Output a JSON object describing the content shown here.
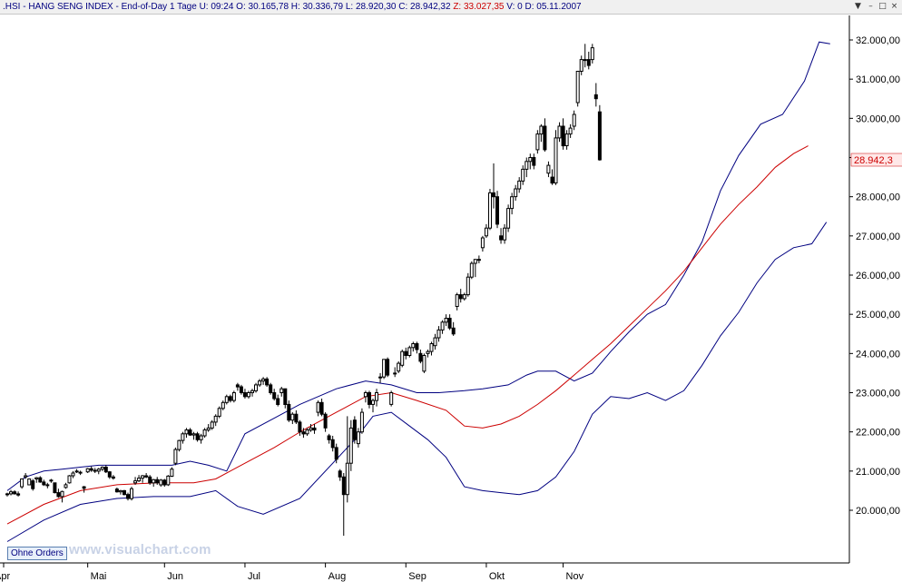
{
  "header": {
    "symbol": ".HSI",
    "name": "HANG SENG INDEX",
    "period": "End-of-Day 1 Tage",
    "u_label": "U:",
    "u_value": "09:24",
    "o_label": "O:",
    "o_value": "30.165,78",
    "h_label": "H:",
    "h_value": "30.336,79",
    "l_label": "L:",
    "l_value": "28.920,30",
    "c_label": "C:",
    "c_value": "28.942,32",
    "z_label": "Z:",
    "z_value": "33.027,35",
    "v_label": "V:",
    "v_value": "0",
    "d_label": "D:",
    "d_value": "05.11.2007"
  },
  "window_buttons": {
    "menu": "▼",
    "minimize": "–",
    "maximize": "□",
    "close": "×"
  },
  "ohne_orders_label": "Ohne Orders",
  "watermark_text": "www.visualchart.com",
  "last_price_label": "28.942,3",
  "colors": {
    "background": "#ffffff",
    "candle": "#000000",
    "bollinger_band": "#000080",
    "moving_average": "#cc0000",
    "axis_text": "#000000",
    "last_price_text": "#cc0000",
    "last_price_bg": "#ffe8e8"
  },
  "chart_data": {
    "type": "candlestick",
    "title": ".HSI - HANG SENG INDEX",
    "y_range": [
      19000,
      32300
    ],
    "y_ticks": [
      20000,
      21000,
      22000,
      23000,
      24000,
      25000,
      26000,
      27000,
      28000,
      29000,
      30000,
      31000,
      32000
    ],
    "y_tick_labels": [
      "20.000,00",
      "21.000,00",
      "22.000,00",
      "23.000,00",
      "24.000,00",
      "25.000,00",
      "26.000,00",
      "27.000,00",
      "28.000,00",
      "29.000,00",
      "30.000,00",
      "31.000,00",
      "32.000,00"
    ],
    "x_labels": [
      "Apr",
      "Mai",
      "Jun",
      "Jul",
      "Aug",
      "Sep",
      "Okt",
      "Nov"
    ],
    "candles": [
      [
        20400,
        20450,
        20350,
        20420
      ],
      [
        20420,
        20520,
        20380,
        20470
      ],
      [
        20470,
        20510,
        20400,
        20420
      ],
      [
        20420,
        20480,
        20350,
        20390
      ],
      [
        20600,
        20800,
        20550,
        20800
      ],
      [
        20850,
        20950,
        20800,
        20880
      ],
      [
        20650,
        20800,
        20650,
        20800
      ],
      [
        20750,
        20800,
        20500,
        20550
      ],
      [
        20800,
        20850,
        20700,
        20830
      ],
      [
        20830,
        20870,
        20700,
        20720
      ],
      [
        20720,
        20780,
        20620,
        20650
      ],
      [
        20650,
        20700,
        20560,
        20630
      ],
      [
        20750,
        20800,
        20700,
        20770
      ],
      [
        20700,
        20700,
        20430,
        20450
      ],
      [
        20450,
        20550,
        20320,
        20350
      ],
      [
        20350,
        20500,
        20200,
        20480
      ],
      [
        20580,
        20700,
        20550,
        20650
      ],
      [
        20700,
        20900,
        20680,
        20880
      ],
      [
        20880,
        21000,
        20820,
        20950
      ],
      [
        21000,
        21050,
        20950,
        20980
      ],
      [
        20950,
        21010,
        20900,
        20970
      ],
      [
        20600,
        20620,
        20450,
        20560
      ],
      [
        20980,
        21080,
        20950,
        21060
      ],
      [
        21060,
        21120,
        20980,
        21020
      ],
      [
        21020,
        21080,
        20950,
        21000
      ],
      [
        21000,
        21080,
        20920,
        21050
      ],
      [
        21050,
        21120,
        21000,
        21100
      ],
      [
        21100,
        21150,
        20950,
        20980
      ],
      [
        20980,
        21000,
        20800,
        20850
      ],
      [
        20850,
        20900,
        20780,
        20820
      ],
      [
        20540,
        20580,
        20450,
        20470
      ],
      [
        20470,
        20520,
        20400,
        20500
      ],
      [
        20500,
        20520,
        20380,
        20400
      ],
      [
        20400,
        20450,
        20250,
        20300
      ],
      [
        20300,
        20600,
        20250,
        20550
      ],
      [
        20700,
        20850,
        20650,
        20750
      ],
      [
        20750,
        20900,
        20720,
        20820
      ],
      [
        20820,
        20900,
        20700,
        20880
      ],
      [
        20880,
        20950,
        20820,
        20850
      ],
      [
        20850,
        20900,
        20650,
        20700
      ],
      [
        20700,
        20800,
        20600,
        20780
      ],
      [
        20780,
        20850,
        20650,
        20700
      ],
      [
        20650,
        20800,
        20600,
        20770
      ],
      [
        20770,
        20800,
        20600,
        20650
      ],
      [
        20650,
        20900,
        20620,
        20870
      ],
      [
        20870,
        21100,
        20850,
        21050
      ],
      [
        21200,
        21600,
        21150,
        21550
      ],
      [
        21550,
        21800,
        21500,
        21780
      ],
      [
        21780,
        22000,
        21700,
        21950
      ],
      [
        21950,
        22100,
        21850,
        22050
      ],
      [
        22050,
        22100,
        21900,
        21920
      ],
      [
        21920,
        22000,
        21800,
        21950
      ],
      [
        21950,
        22000,
        21750,
        21800
      ],
      [
        21800,
        21950,
        21700,
        21900
      ],
      [
        21900,
        22100,
        21850,
        22050
      ],
      [
        22050,
        22200,
        22000,
        22100
      ],
      [
        22100,
        22300,
        22050,
        22250
      ],
      [
        22250,
        22450,
        22150,
        22400
      ],
      [
        22400,
        22650,
        22350,
        22600
      ],
      [
        22600,
        22800,
        22550,
        22750
      ],
      [
        22750,
        22950,
        22700,
        22900
      ],
      [
        22900,
        22950,
        22750,
        22800
      ],
      [
        22800,
        23050,
        22750,
        23000
      ],
      [
        23200,
        23250,
        23050,
        23150
      ],
      [
        23150,
        23200,
        22950,
        23000
      ],
      [
        23000,
        23100,
        22850,
        22900
      ],
      [
        22900,
        23050,
        22850,
        23000
      ],
      [
        23000,
        23100,
        22900,
        23050
      ],
      [
        23050,
        23250,
        23000,
        23200
      ],
      [
        23200,
        23350,
        23150,
        23300
      ],
      [
        23300,
        23400,
        23200,
        23350
      ],
      [
        23350,
        23400,
        23150,
        23200
      ],
      [
        23200,
        23250,
        22950,
        23000
      ],
      [
        23000,
        23100,
        22800,
        22850
      ],
      [
        22850,
        22950,
        22650,
        22700
      ],
      [
        23000,
        23150,
        22900,
        23100
      ],
      [
        23100,
        23100,
        22600,
        22700
      ],
      [
        22700,
        22800,
        22250,
        22300
      ],
      [
        22300,
        22500,
        22200,
        22450
      ],
      [
        22450,
        22550,
        22200,
        22250
      ],
      [
        22250,
        22300,
        21900,
        22000
      ],
      [
        22000,
        22100,
        21850,
        21950
      ],
      [
        21950,
        22100,
        21900,
        22050
      ],
      [
        22050,
        22200,
        22000,
        22100
      ],
      [
        22100,
        22200,
        21950,
        22050
      ],
      [
        22500,
        22800,
        22400,
        22750
      ],
      [
        22750,
        22850,
        22400,
        22450
      ],
      [
        22450,
        22500,
        22000,
        22100
      ],
      [
        21900,
        21950,
        21700,
        21800
      ],
      [
        21800,
        21900,
        21500,
        21600
      ],
      [
        21600,
        21700,
        21200,
        21300
      ],
      [
        21000,
        21050,
        20750,
        20850
      ],
      [
        20850,
        20950,
        19350,
        20400
      ],
      [
        20400,
        22400,
        20200,
        21200
      ],
      [
        21200,
        22300,
        21000,
        22100
      ],
      [
        22300,
        22400,
        21700,
        21800
      ],
      [
        21700,
        22100,
        21600,
        22000
      ],
      [
        22000,
        22600,
        21950,
        22500
      ],
      [
        22900,
        23050,
        22750,
        23000
      ],
      [
        23000,
        23050,
        22600,
        22700
      ],
      [
        22700,
        22850,
        22500,
        22800
      ],
      [
        22800,
        23100,
        22650,
        23000
      ],
      [
        23400,
        23500,
        23250,
        23400
      ],
      [
        23400,
        23850,
        23350,
        23850
      ],
      [
        23850,
        23900,
        23400,
        23450
      ],
      [
        22700,
        23050,
        22650,
        23000
      ],
      [
        23500,
        23650,
        23400,
        23500
      ],
      [
        23550,
        23800,
        23500,
        23750
      ],
      [
        23700,
        24100,
        23650,
        24050
      ],
      [
        24050,
        24150,
        23850,
        23950
      ],
      [
        23950,
        24200,
        23900,
        24150
      ],
      [
        24150,
        24300,
        24050,
        24250
      ],
      [
        24250,
        24300,
        24000,
        24100
      ],
      [
        24000,
        24100,
        23750,
        23800
      ],
      [
        23550,
        24000,
        23500,
        23950
      ],
      [
        24000,
        24100,
        23900,
        24050
      ],
      [
        24050,
        24300,
        23950,
        24250
      ],
      [
        24200,
        24500,
        24100,
        24400
      ],
      [
        24400,
        24700,
        24300,
        24600
      ],
      [
        24600,
        24850,
        24500,
        24800
      ],
      [
        24800,
        25000,
        24700,
        24900
      ],
      [
        24900,
        25000,
        24600,
        24650
      ],
      [
        24650,
        24800,
        24450,
        24500
      ],
      [
        25200,
        25550,
        25100,
        25500
      ],
      [
        25500,
        25650,
        25300,
        25400
      ],
      [
        25400,
        25550,
        25350,
        25500
      ],
      [
        25500,
        26050,
        25450,
        25950
      ],
      [
        25950,
        26350,
        25900,
        26300
      ],
      [
        26300,
        26400,
        25950,
        26400
      ],
      [
        26400,
        26500,
        26300,
        26400
      ],
      [
        26700,
        27000,
        26600,
        26950
      ],
      [
        27000,
        27300,
        26950,
        27200
      ],
      [
        27200,
        28200,
        27150,
        28100
      ],
      [
        28100,
        28850,
        27700,
        28000
      ],
      [
        28000,
        28150,
        27200,
        27300
      ],
      [
        27000,
        27200,
        26800,
        26900
      ],
      [
        26900,
        27300,
        26800,
        27200
      ],
      [
        27200,
        27800,
        27100,
        27700
      ],
      [
        27700,
        28100,
        27550,
        28000
      ],
      [
        28000,
        28300,
        27900,
        28200
      ],
      [
        28200,
        28500,
        28100,
        28400
      ],
      [
        28400,
        28800,
        28300,
        28700
      ],
      [
        28700,
        29000,
        28500,
        28900
      ],
      [
        28900,
        29100,
        28700,
        29000
      ],
      [
        29000,
        29100,
        28700,
        28800
      ],
      [
        29200,
        29700,
        29100,
        29600
      ],
      [
        29600,
        29850,
        29400,
        29800
      ],
      [
        29800,
        30000,
        29150,
        29200
      ],
      [
        28600,
        28900,
        28500,
        28800
      ],
      [
        28500,
        28700,
        28300,
        28350
      ],
      [
        28350,
        29700,
        28300,
        29500
      ],
      [
        29500,
        29900,
        29400,
        29800
      ],
      [
        29800,
        30000,
        29200,
        29300
      ],
      [
        29300,
        29700,
        29200,
        29600
      ],
      [
        29600,
        29850,
        29500,
        29750
      ],
      [
        29800,
        30200,
        29700,
        30100
      ],
      [
        30400,
        31200,
        30300,
        31200
      ],
      [
        31200,
        31600,
        31100,
        31500
      ],
      [
        31500,
        31900,
        31300,
        31500
      ],
      [
        31500,
        31700,
        31250,
        31350
      ],
      [
        31500,
        31900,
        31400,
        31800
      ],
      [
        30600,
        30900,
        30300,
        30500
      ],
      [
        30166,
        30337,
        28920,
        28942
      ]
    ],
    "x_label_indices": [
      0,
      22,
      43,
      65,
      87,
      109,
      131,
      152
    ],
    "moving_average": [
      [
        0,
        19650
      ],
      [
        10,
        20150
      ],
      [
        20,
        20500
      ],
      [
        30,
        20650
      ],
      [
        41,
        20700
      ],
      [
        51,
        20700
      ],
      [
        57,
        20800
      ],
      [
        65,
        21200
      ],
      [
        73,
        21600
      ],
      [
        81,
        22050
      ],
      [
        90,
        22500
      ],
      [
        98,
        22900
      ],
      [
        105,
        23000
      ],
      [
        112,
        22800
      ],
      [
        120,
        22550
      ],
      [
        125,
        22150
      ],
      [
        130,
        22100
      ],
      [
        135,
        22200
      ],
      [
        140,
        22400
      ],
      [
        145,
        22700
      ],
      [
        150,
        23050
      ],
      [
        155,
        23450
      ],
      [
        160,
        23850
      ],
      [
        165,
        24250
      ],
      [
        170,
        24700
      ],
      [
        175,
        25150
      ],
      [
        180,
        25600
      ],
      [
        185,
        26100
      ],
      [
        190,
        26700
      ],
      [
        195,
        27300
      ],
      [
        200,
        27800
      ],
      [
        205,
        28250
      ],
      [
        210,
        28750
      ],
      [
        215,
        29100
      ],
      [
        219,
        29300
      ]
    ],
    "upper_band": [
      [
        0,
        20500
      ],
      [
        5,
        20850
      ],
      [
        10,
        21000
      ],
      [
        15,
        21050
      ],
      [
        20,
        21100
      ],
      [
        25,
        21150
      ],
      [
        30,
        21150
      ],
      [
        35,
        21150
      ],
      [
        40,
        21150
      ],
      [
        45,
        21150
      ],
      [
        50,
        21250
      ],
      [
        55,
        21150
      ],
      [
        60,
        21000
      ],
      [
        65,
        21950
      ],
      [
        72,
        22300
      ],
      [
        80,
        22700
      ],
      [
        90,
        23100
      ],
      [
        98,
        23300
      ],
      [
        105,
        23200
      ],
      [
        112,
        23000
      ],
      [
        118,
        23000
      ],
      [
        125,
        23050
      ],
      [
        130,
        23100
      ],
      [
        137,
        23200
      ],
      [
        142,
        23450
      ],
      [
        145,
        23550
      ],
      [
        150,
        23550
      ],
      [
        155,
        23300
      ],
      [
        160,
        23500
      ],
      [
        165,
        24050
      ],
      [
        170,
        24550
      ],
      [
        175,
        25000
      ],
      [
        180,
        25250
      ],
      [
        185,
        26000
      ],
      [
        190,
        26850
      ],
      [
        195,
        28150
      ],
      [
        200,
        29050
      ],
      [
        206,
        29850
      ],
      [
        212,
        30100
      ],
      [
        218,
        30950
      ],
      [
        222,
        31950
      ],
      [
        225,
        31900
      ]
    ],
    "lower_band": [
      [
        0,
        19200
      ],
      [
        10,
        19750
      ],
      [
        20,
        20150
      ],
      [
        30,
        20300
      ],
      [
        40,
        20350
      ],
      [
        50,
        20350
      ],
      [
        57,
        20500
      ],
      [
        63,
        20100
      ],
      [
        70,
        19900
      ],
      [
        80,
        20300
      ],
      [
        90,
        21300
      ],
      [
        95,
        21800
      ],
      [
        100,
        22400
      ],
      [
        105,
        22500
      ],
      [
        110,
        22150
      ],
      [
        115,
        21800
      ],
      [
        120,
        21350
      ],
      [
        125,
        20600
      ],
      [
        130,
        20500
      ],
      [
        135,
        20450
      ],
      [
        140,
        20400
      ],
      [
        145,
        20500
      ],
      [
        150,
        20850
      ],
      [
        155,
        21500
      ],
      [
        160,
        22450
      ],
      [
        165,
        22900
      ],
      [
        170,
        22850
      ],
      [
        175,
        23000
      ],
      [
        180,
        22800
      ],
      [
        185,
        23050
      ],
      [
        190,
        23700
      ],
      [
        195,
        24450
      ],
      [
        200,
        25050
      ],
      [
        205,
        25800
      ],
      [
        210,
        26400
      ],
      [
        215,
        26700
      ],
      [
        220,
        26800
      ],
      [
        224,
        27350
      ]
    ]
  }
}
